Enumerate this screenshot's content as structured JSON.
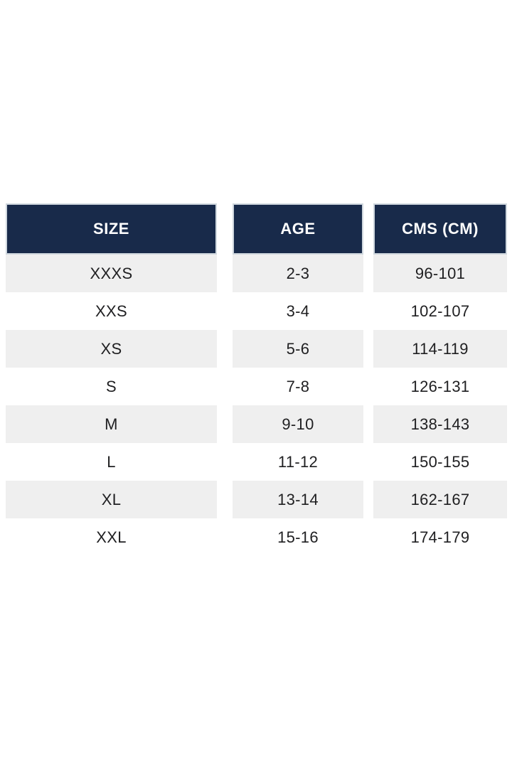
{
  "table": {
    "title": "size-chart",
    "columns": [
      {
        "key": "size",
        "label": "SIZE"
      },
      {
        "key": "age",
        "label": "AGE"
      },
      {
        "key": "cms",
        "label": "CMS (CM)"
      }
    ],
    "rows": [
      {
        "size": "XXXS",
        "age": "2-3",
        "cms": "96-101"
      },
      {
        "size": "XXS",
        "age": "3-4",
        "cms": "102-107"
      },
      {
        "size": "XS",
        "age": "5-6",
        "cms": "114-119"
      },
      {
        "size": "S",
        "age": "7-8",
        "cms": "126-131"
      },
      {
        "size": "M",
        "age": "9-10",
        "cms": "138-143"
      },
      {
        "size": "L",
        "age": "11-12",
        "cms": "150-155"
      },
      {
        "size": "XL",
        "age": "13-14",
        "cms": "162-167"
      },
      {
        "size": "XXL",
        "age": "15-16",
        "cms": "174-179"
      }
    ],
    "colors": {
      "header_bg": "#182a4a",
      "header_text": "#ffffff",
      "header_border": "#cfd7de",
      "row_alt_bg": "#efefef",
      "row_bg": "#ffffff",
      "row_text": "#1f1f21",
      "page_bg": "#ffffff"
    }
  }
}
